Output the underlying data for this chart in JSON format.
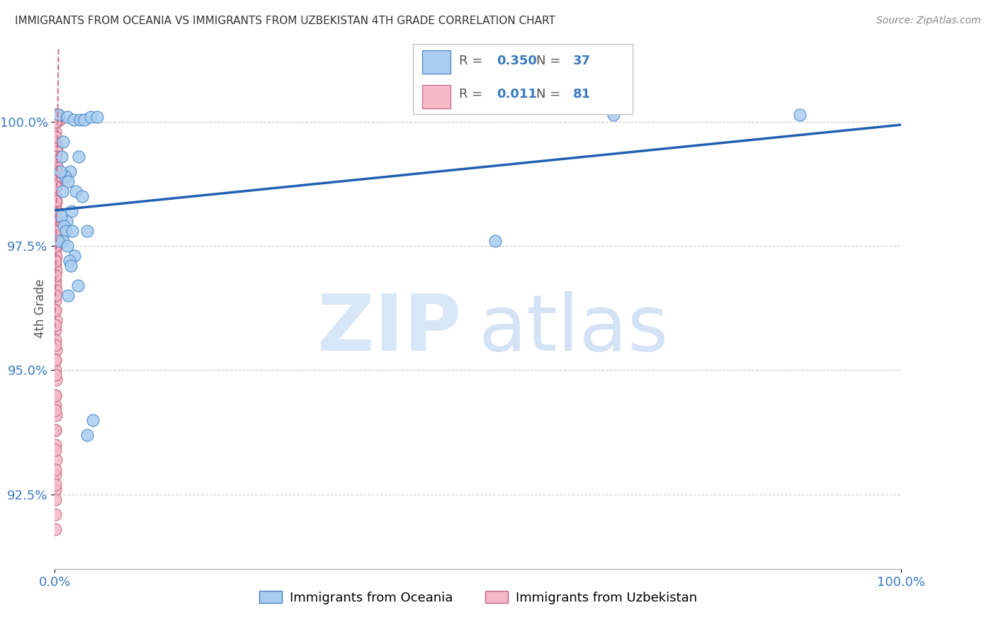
{
  "title": "IMMIGRANTS FROM OCEANIA VS IMMIGRANTS FROM UZBEKISTAN 4TH GRADE CORRELATION CHART",
  "source": "Source: ZipAtlas.com",
  "ylabel": "4th Grade",
  "ylabel_ticks": [
    "92.5%",
    "95.0%",
    "97.5%",
    "100.0%"
  ],
  "ylabel_values": [
    92.5,
    95.0,
    97.5,
    100.0
  ],
  "xmin": 0.0,
  "xmax": 100.0,
  "ymin": 91.0,
  "ymax": 101.5,
  "legend_blue_r": "0.350",
  "legend_blue_n": "37",
  "legend_pink_r": "0.011",
  "legend_pink_n": "81",
  "legend_label_blue": "Immigrants from Oceania",
  "legend_label_pink": "Immigrants from Uzbekistan",
  "blue_color": "#a8cdf0",
  "pink_color": "#f5b8c8",
  "trendline_blue_color": "#2060b0",
  "trendline_pink_color": "#d07090",
  "blue_scatter_edge": "#4080c0",
  "pink_scatter_edge": "#c06080",
  "blue_points": [
    [
      0.5,
      100.15
    ],
    [
      1.5,
      100.1
    ],
    [
      2.2,
      100.05
    ],
    [
      3.0,
      100.05
    ],
    [
      3.5,
      100.05
    ],
    [
      4.2,
      100.1
    ],
    [
      5.0,
      100.1
    ],
    [
      1.0,
      99.6
    ],
    [
      2.8,
      99.3
    ],
    [
      1.8,
      99.0
    ],
    [
      0.8,
      99.3
    ],
    [
      1.2,
      98.9
    ],
    [
      0.6,
      99.0
    ],
    [
      1.6,
      98.8
    ],
    [
      2.5,
      98.6
    ],
    [
      0.9,
      98.6
    ],
    [
      3.2,
      98.5
    ],
    [
      2.0,
      98.2
    ],
    [
      1.4,
      98.0
    ],
    [
      0.7,
      98.1
    ],
    [
      1.1,
      97.9
    ],
    [
      1.3,
      97.8
    ],
    [
      2.1,
      97.8
    ],
    [
      3.8,
      97.8
    ],
    [
      1.0,
      97.6
    ],
    [
      0.4,
      97.6
    ],
    [
      1.5,
      97.5
    ],
    [
      2.3,
      97.3
    ],
    [
      1.7,
      97.2
    ],
    [
      1.9,
      97.1
    ],
    [
      2.7,
      96.7
    ],
    [
      1.6,
      96.5
    ],
    [
      4.5,
      94.0
    ],
    [
      3.8,
      93.7
    ],
    [
      66.0,
      100.15
    ],
    [
      88.0,
      100.15
    ],
    [
      52.0,
      97.6
    ]
  ],
  "pink_points": [
    [
      0.15,
      100.15
    ],
    [
      0.22,
      100.15
    ],
    [
      0.3,
      100.15
    ],
    [
      0.38,
      100.1
    ],
    [
      0.45,
      100.1
    ],
    [
      0.52,
      100.05
    ],
    [
      0.1,
      100.0
    ],
    [
      0.18,
      100.0
    ],
    [
      0.08,
      99.8
    ],
    [
      0.14,
      99.6
    ],
    [
      0.2,
      99.5
    ],
    [
      0.25,
      99.4
    ],
    [
      0.12,
      99.3
    ],
    [
      0.16,
      99.2
    ],
    [
      0.22,
      99.1
    ],
    [
      0.18,
      99.0
    ],
    [
      0.24,
      98.9
    ],
    [
      0.1,
      98.8
    ],
    [
      0.14,
      98.7
    ],
    [
      0.08,
      98.5
    ],
    [
      0.12,
      98.4
    ],
    [
      0.06,
      98.3
    ],
    [
      0.1,
      98.2
    ],
    [
      0.08,
      98.0
    ],
    [
      0.12,
      97.9
    ],
    [
      0.06,
      97.8
    ],
    [
      0.1,
      97.7
    ],
    [
      0.08,
      97.6
    ],
    [
      0.12,
      97.5
    ],
    [
      0.06,
      97.4
    ],
    [
      0.1,
      97.3
    ],
    [
      0.08,
      97.2
    ],
    [
      0.06,
      97.1
    ],
    [
      0.1,
      97.0
    ],
    [
      0.08,
      96.8
    ],
    [
      0.06,
      96.7
    ],
    [
      0.1,
      96.6
    ],
    [
      0.08,
      96.4
    ],
    [
      0.06,
      96.2
    ],
    [
      0.1,
      96.0
    ],
    [
      0.08,
      95.8
    ],
    [
      0.06,
      95.6
    ],
    [
      0.1,
      95.4
    ],
    [
      0.08,
      95.2
    ],
    [
      0.06,
      95.0
    ],
    [
      0.1,
      94.8
    ],
    [
      0.08,
      94.5
    ],
    [
      0.06,
      94.3
    ],
    [
      0.1,
      94.1
    ],
    [
      0.08,
      93.8
    ],
    [
      0.06,
      93.5
    ],
    [
      0.1,
      93.2
    ],
    [
      0.08,
      92.9
    ],
    [
      0.06,
      92.6
    ],
    [
      0.04,
      100.15
    ],
    [
      0.06,
      100.0
    ],
    [
      0.05,
      99.7
    ],
    [
      0.07,
      99.3
    ],
    [
      0.04,
      99.0
    ],
    [
      0.06,
      98.7
    ],
    [
      0.05,
      98.4
    ],
    [
      0.07,
      98.1
    ],
    [
      0.04,
      97.8
    ],
    [
      0.06,
      97.5
    ],
    [
      0.05,
      97.2
    ],
    [
      0.07,
      96.9
    ],
    [
      0.04,
      96.5
    ],
    [
      0.06,
      96.2
    ],
    [
      0.05,
      95.9
    ],
    [
      0.07,
      95.5
    ],
    [
      0.04,
      95.2
    ],
    [
      0.06,
      94.9
    ],
    [
      0.05,
      94.5
    ],
    [
      0.07,
      94.2
    ],
    [
      0.04,
      93.8
    ],
    [
      0.06,
      93.4
    ],
    [
      0.05,
      93.0
    ],
    [
      0.07,
      92.7
    ],
    [
      0.04,
      92.4
    ],
    [
      0.06,
      92.1
    ],
    [
      0.05,
      91.8
    ]
  ]
}
